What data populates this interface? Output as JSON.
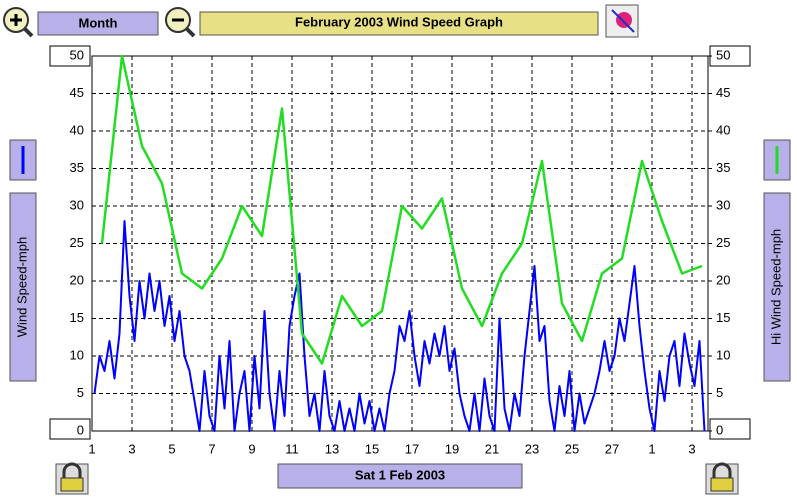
{
  "toolbar": {
    "period_button": "Month",
    "date_button": "Sat 1 Feb 2003"
  },
  "chart_data": {
    "type": "line",
    "title": "February 2003 Wind Speed Graph",
    "xlim": [
      0,
      30.8
    ],
    "xticks": [
      {
        "value": 0,
        "label": "1"
      },
      {
        "value": 2,
        "label": "3"
      },
      {
        "value": 4,
        "label": "5"
      },
      {
        "value": 6,
        "label": "7"
      },
      {
        "value": 8,
        "label": "9"
      },
      {
        "value": 10,
        "label": "11"
      },
      {
        "value": 12,
        "label": "13"
      },
      {
        "value": 14,
        "label": "15"
      },
      {
        "value": 16,
        "label": "17"
      },
      {
        "value": 18,
        "label": "19"
      },
      {
        "value": 20,
        "label": "21"
      },
      {
        "value": 22,
        "label": "23"
      },
      {
        "value": 24,
        "label": "25"
      },
      {
        "value": 26,
        "label": "27"
      },
      {
        "value": 28,
        "label": "1"
      },
      {
        "value": 30,
        "label": "3"
      }
    ],
    "ylim": [
      0,
      50
    ],
    "yticks": [
      0,
      5,
      10,
      15,
      20,
      25,
      30,
      35,
      40,
      45,
      50
    ],
    "y2lim": [
      0,
      50
    ],
    "y2ticks": [
      0,
      5,
      10,
      15,
      20,
      25,
      30,
      35,
      40,
      45,
      50
    ],
    "grid": true,
    "series": [
      {
        "name": "Wind Speed-mph",
        "color": "#0000ff",
        "x": [
          0.125,
          0.375,
          0.625,
          0.875,
          1.125,
          1.375,
          1.625,
          1.875,
          2.125,
          2.375,
          2.625,
          2.875,
          3.125,
          3.375,
          3.625,
          3.875,
          4.125,
          4.375,
          4.625,
          4.875,
          5.125,
          5.375,
          5.625,
          5.875,
          6.125,
          6.375,
          6.625,
          6.875,
          7.125,
          7.375,
          7.625,
          7.875,
          8.125,
          8.375,
          8.625,
          8.875,
          9.125,
          9.375,
          9.625,
          9.875,
          10.125,
          10.375,
          10.625,
          10.875,
          11.125,
          11.375,
          11.625,
          11.875,
          12.125,
          12.375,
          12.625,
          12.875,
          13.125,
          13.375,
          13.625,
          13.875,
          14.125,
          14.375,
          14.625,
          14.875,
          15.125,
          15.375,
          15.625,
          15.875,
          16.125,
          16.375,
          16.625,
          16.875,
          17.125,
          17.375,
          17.625,
          17.875,
          18.125,
          18.375,
          18.625,
          18.875,
          19.125,
          19.375,
          19.625,
          19.875,
          20.125,
          20.375,
          20.625,
          20.875,
          21.125,
          21.375,
          21.625,
          21.875,
          22.125,
          22.375,
          22.625,
          22.875,
          23.125,
          23.375,
          23.625,
          23.875,
          24.125,
          24.375,
          24.625,
          24.875,
          25.125,
          25.375,
          25.625,
          25.875,
          26.125,
          26.375,
          26.625,
          26.875,
          27.125,
          27.375,
          27.625,
          27.875,
          28.125,
          28.375,
          28.625,
          28.875,
          29.125,
          29.375,
          29.625,
          29.875,
          30.125,
          30.375,
          30.625
        ],
        "values": [
          5,
          10,
          8,
          12,
          7,
          13,
          28,
          18,
          12,
          20,
          15,
          21,
          16,
          20,
          14,
          18,
          12,
          16,
          10,
          8,
          4,
          0,
          8,
          2,
          0,
          10,
          3,
          12,
          0,
          5,
          8,
          0,
          10,
          3,
          16,
          5,
          0,
          8,
          2,
          14,
          18,
          21,
          10,
          2,
          5,
          0,
          8,
          2,
          0,
          4,
          0,
          3,
          0,
          5,
          1,
          4,
          0,
          3,
          0,
          5,
          8,
          14,
          12,
          16,
          10,
          6,
          12,
          9,
          13,
          10,
          14,
          8,
          11,
          5,
          2,
          0,
          5,
          0,
          7,
          2,
          0,
          15,
          3,
          0,
          5,
          2,
          10,
          16,
          22,
          12,
          14,
          4,
          0,
          6,
          2,
          8,
          0,
          5,
          1,
          3,
          5,
          8,
          12,
          8,
          10,
          15,
          12,
          17,
          22,
          14,
          8,
          3,
          0,
          8,
          4,
          10,
          12,
          6,
          13,
          9,
          6,
          12,
          0
        ]
      },
      {
        "name": "Hi Wind Speed-mph",
        "color": "#22dd22",
        "axis": "y2",
        "x": [
          0.5,
          1.5,
          2.5,
          3.5,
          4.5,
          5.5,
          6.5,
          7.5,
          8.5,
          9.5,
          10.5,
          11.5,
          12.5,
          13.5,
          14.5,
          15.5,
          16.5,
          17.5,
          18.5,
          19.5,
          20.5,
          21.5,
          22.5,
          23.5,
          24.5,
          25.5,
          26.5,
          27.5,
          28.5,
          29.5,
          30.5
        ],
        "values": [
          25,
          50,
          38,
          33,
          21,
          19,
          23,
          30,
          26,
          43,
          13,
          9,
          18,
          14,
          16,
          30,
          27,
          31,
          19,
          14,
          21,
          25,
          36,
          17,
          12,
          21,
          23,
          36,
          28,
          21,
          22
        ]
      }
    ]
  }
}
